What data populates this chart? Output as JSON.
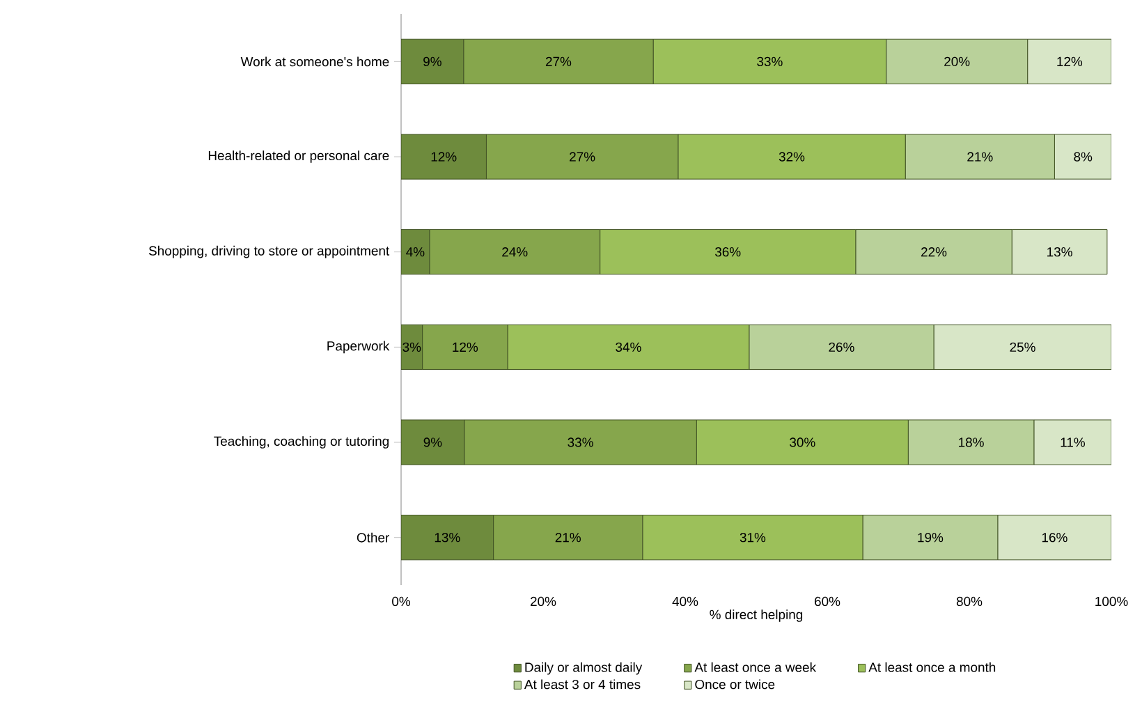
{
  "chart_data": {
    "type": "bar",
    "orientation": "horizontal",
    "stacked": true,
    "categories": [
      "Work at someone's home",
      "Health-related or personal care",
      "Shopping, driving to store or appointment",
      "Paperwork",
      "Teaching, coaching or tutoring",
      "Other"
    ],
    "xlabel": "% direct helping",
    "xlim": [
      0,
      100
    ],
    "xticks": [
      {
        "value": 0,
        "label": "0%"
      },
      {
        "value": 20,
        "label": "20%"
      },
      {
        "value": 40,
        "label": "40%"
      },
      {
        "value": 60,
        "label": "60%"
      },
      {
        "value": 80,
        "label": "80%"
      },
      {
        "value": 100,
        "label": "100%"
      }
    ],
    "legend": "bottom",
    "series": [
      {
        "name": "Daily or almost daily",
        "color": "#6e8b3d",
        "values": [
          8.8,
          12,
          4,
          3,
          8.9,
          13
        ],
        "value_labels": [
          "9%",
          "12%",
          "4%",
          "3%",
          "9%",
          "13%"
        ]
      },
      {
        "name": "At least once a week",
        "color": "#86a64c",
        "values": [
          26.7,
          27,
          24,
          12,
          32.7,
          21
        ],
        "value_labels": [
          "27%",
          "27%",
          "24%",
          "12%",
          "33%",
          "21%"
        ]
      },
      {
        "name": "At least once a month",
        "color": "#9cc05a",
        "values": [
          32.8,
          32,
          36,
          34,
          29.8,
          31
        ],
        "value_labels": [
          "33%",
          "32%",
          "36%",
          "34%",
          "30%",
          "31%"
        ]
      },
      {
        "name": "At least 3 or 4 times",
        "color": "#b9d19a",
        "values": [
          19.9,
          21,
          22,
          26,
          17.7,
          19
        ],
        "value_labels": [
          "20%",
          "21%",
          "22%",
          "26%",
          "18%",
          "19%"
        ]
      },
      {
        "name": "Once or twice",
        "color": "#d8e6c7",
        "values": [
          11.8,
          8,
          13.4,
          25,
          10.9,
          16
        ],
        "value_labels": [
          "12%",
          "8%",
          "13%",
          "25%",
          "11%",
          "16%"
        ]
      }
    ]
  }
}
